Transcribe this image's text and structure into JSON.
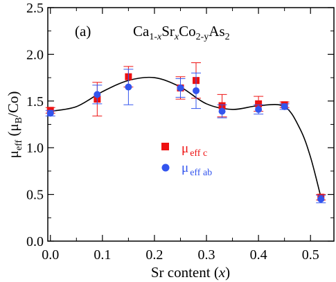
{
  "chart_data": {
    "type": "scatter",
    "panel_label": "(a)",
    "formula": {
      "el1": "Ca",
      "sub1": "1-",
      "var1": "x",
      "el2": "Sr",
      "var2": "x",
      "el3": "Co",
      "sub3": "2-y",
      "el4": "As",
      "sub4": "2"
    },
    "xlabel": {
      "text": "Sr content (",
      "var": "x",
      "close": ")"
    },
    "ylabel": {
      "main": "μ",
      "sub": "eff",
      "open": " (μ",
      "unit_sub": "B",
      "close": "/Co)"
    },
    "xlim": [
      -0.005,
      0.545
    ],
    "ylim": [
      0.0,
      2.5
    ],
    "x_ticks": [
      "0.0",
      "0.1",
      "0.2",
      "0.3",
      "0.4",
      "0.5"
    ],
    "x_tick_values": [
      0.0,
      0.1,
      0.2,
      0.3,
      0.4,
      0.5
    ],
    "y_ticks": [
      "0.0",
      "0.5",
      "1.0",
      "1.5",
      "2.0",
      "2.5"
    ],
    "y_tick_values": [
      0.0,
      0.5,
      1.0,
      1.5,
      2.0,
      2.5
    ],
    "legend_position": "center",
    "series": [
      {
        "name_main": "μ",
        "name_sub": "eff c",
        "marker": "square",
        "color": "#ee1111",
        "x": [
          0.0,
          0.09,
          0.15,
          0.25,
          0.28,
          0.33,
          0.4,
          0.45,
          0.52
        ],
        "y": [
          1.4,
          1.52,
          1.76,
          1.64,
          1.72,
          1.45,
          1.47,
          1.46,
          0.47
        ],
        "err": [
          0.03,
          0.18,
          0.11,
          0.12,
          0.19,
          0.12,
          0.08,
          0.03,
          0.03
        ]
      },
      {
        "name_main": "μ",
        "name_sub": "eff ab",
        "marker": "circle",
        "color": "#3355ee",
        "x": [
          0.0,
          0.09,
          0.15,
          0.25,
          0.28,
          0.33,
          0.4,
          0.45,
          0.52
        ],
        "y": [
          1.37,
          1.57,
          1.65,
          1.64,
          1.61,
          1.39,
          1.41,
          1.44,
          0.45
        ],
        "err": [
          0.03,
          0.1,
          0.19,
          0.1,
          0.19,
          0.07,
          0.05,
          0.03,
          0.04
        ]
      }
    ],
    "fit_curve": {
      "color": "#000000",
      "x": [
        0.0,
        0.05,
        0.1,
        0.15,
        0.2,
        0.25,
        0.3,
        0.35,
        0.4,
        0.45,
        0.48,
        0.5,
        0.52
      ],
      "y": [
        1.39,
        1.44,
        1.6,
        1.72,
        1.75,
        1.65,
        1.47,
        1.41,
        1.45,
        1.44,
        1.2,
        0.9,
        0.47
      ]
    }
  }
}
